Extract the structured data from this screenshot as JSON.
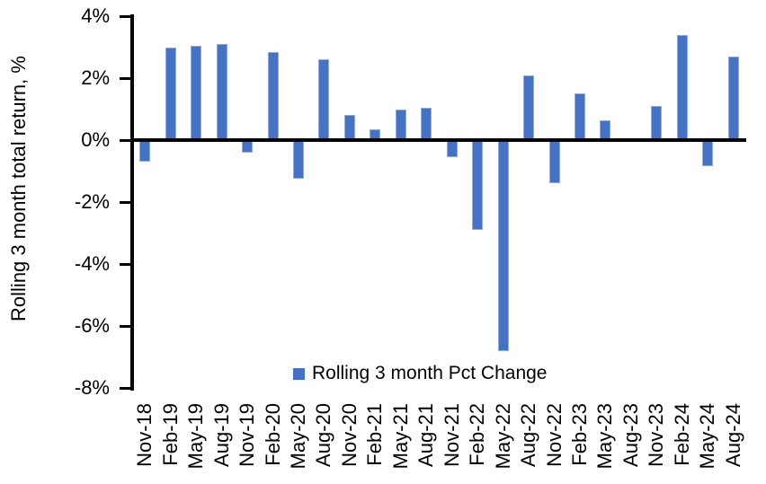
{
  "chart_data": {
    "type": "bar",
    "title": "",
    "categories": [
      "Nov-18",
      "Feb-19",
      "May-19",
      "Aug-19",
      "Nov-19",
      "Feb-20",
      "May-20",
      "Aug-20",
      "Nov-20",
      "Feb-21",
      "May-21",
      "Aug-21",
      "Nov-21",
      "Feb-22",
      "May-22",
      "Aug-22",
      "Nov-22",
      "Feb-23",
      "May-23",
      "Aug-23",
      "Nov-23",
      "Feb-24",
      "May-24",
      "Aug-24"
    ],
    "values": [
      -0.7,
      3.0,
      3.05,
      3.1,
      -0.4,
      2.85,
      -1.25,
      2.6,
      0.8,
      0.35,
      1.0,
      1.05,
      -0.55,
      -2.9,
      -6.8,
      2.1,
      -1.4,
      1.5,
      0.65,
      0.0,
      1.1,
      3.4,
      -0.85,
      2.7
    ],
    "xlabel": "",
    "ylabel": "Rolling 3 month total return, %",
    "ylim": [
      -8,
      4
    ],
    "y_tick_labels": [
      "4%",
      "2%",
      "0%",
      "-2%",
      "-4%",
      "-6%",
      "-8%"
    ],
    "y_tick_values": [
      4,
      2,
      0,
      -2,
      -4,
      -6,
      -8
    ],
    "grid": false,
    "legend": {
      "label": "Rolling 3 month Pct Change",
      "position": "bottom-inside"
    },
    "colors": {
      "bar_fill": "#4472C4",
      "bar_border": "#8FAADC",
      "axis": "#000000",
      "text": "#000000",
      "background": "#FFFFFF"
    }
  }
}
